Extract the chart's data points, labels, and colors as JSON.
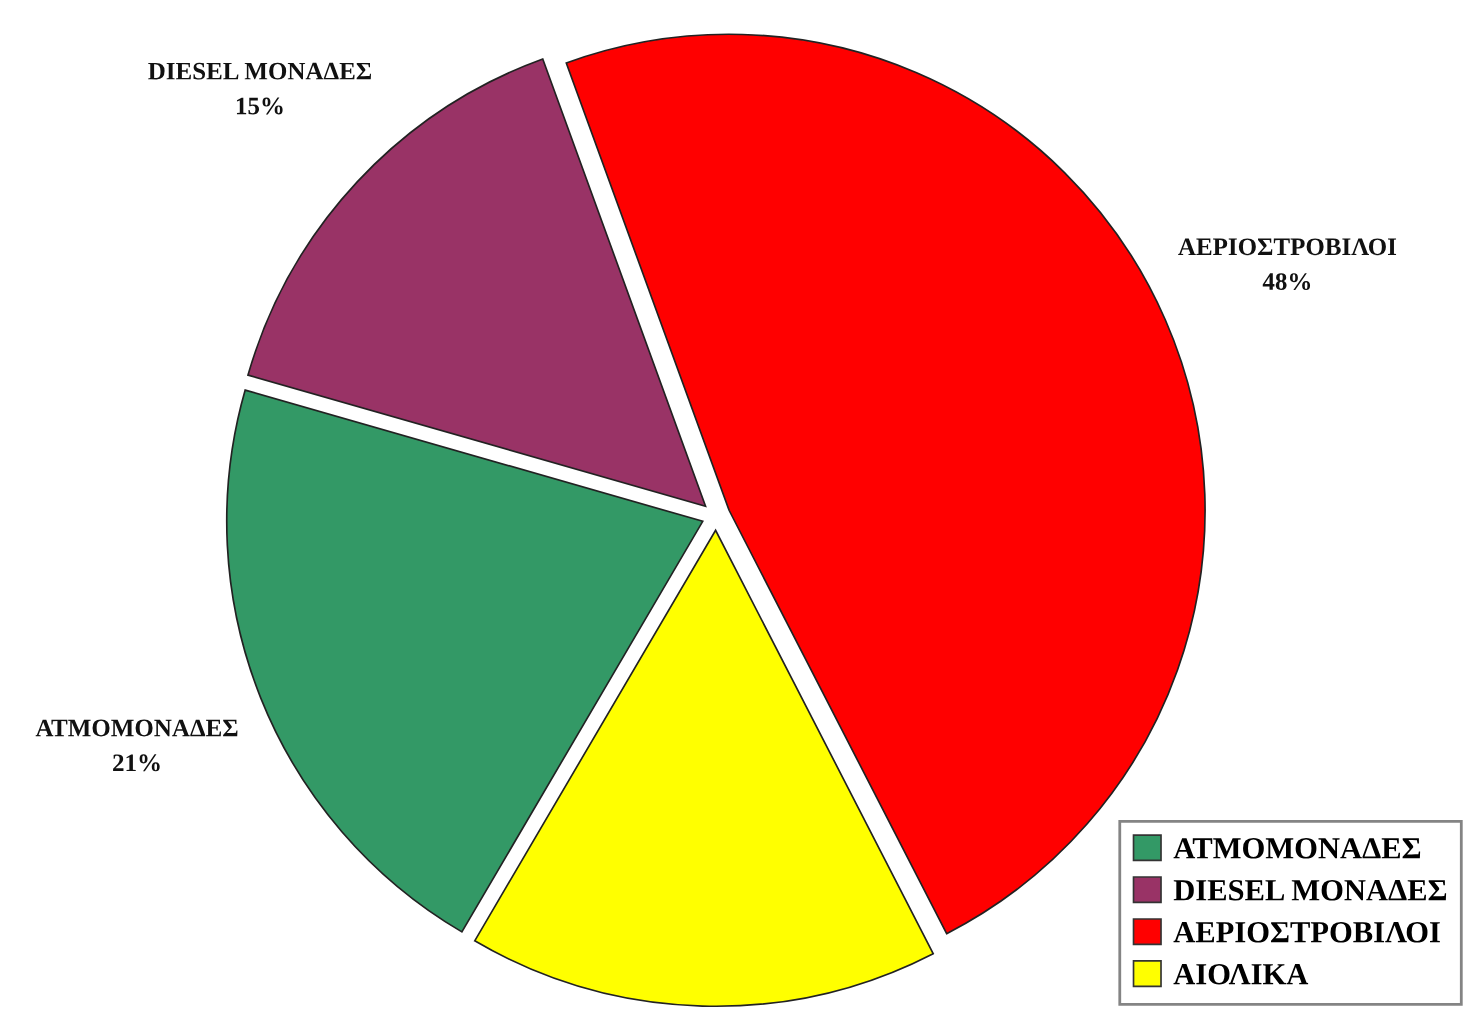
{
  "chart_data": {
    "type": "pie",
    "categories": [
      "ΑΤΜΟΜΟΝΑΔΕΣ",
      "DIESEL ΜΟΝΑΔΕΣ",
      "ΑΕΡΙΟΣΤΡΟΒΙΛΟΙ",
      "ΑΙΟΛΙΚΑ"
    ],
    "values": [
      21,
      15,
      48,
      16
    ],
    "colors": [
      "#339966",
      "#993366",
      "#ff0000",
      "#ffff00"
    ],
    "value_labels": [
      "21%",
      "15%",
      "48%",
      null
    ],
    "legend": "bottom right"
  }
}
